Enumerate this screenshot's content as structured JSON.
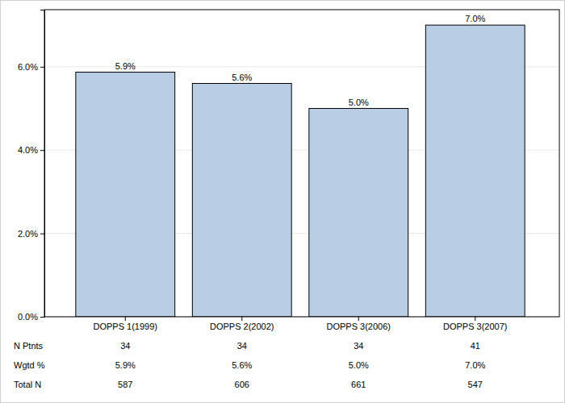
{
  "chart_data": {
    "type": "bar",
    "categories": [
      "DOPPS 1(1999)",
      "DOPPS 2(2002)",
      "DOPPS 3(2006)",
      "DOPPS 3(2007)"
    ],
    "values": [
      5.87,
      5.6,
      5.0,
      7.0
    ],
    "value_labels": [
      "5.9%",
      "5.6%",
      "5.0%",
      "7.0%"
    ],
    "color": "#b9cde5",
    "data_labels": true,
    "grid": true,
    "ylim": [
      0,
      7.37
    ],
    "yticks": [
      {
        "value": 0,
        "label": "0.0%"
      },
      {
        "value": 2,
        "label": "2.0%"
      },
      {
        "value": 4,
        "label": "4.0%"
      },
      {
        "value": 6,
        "label": "6.0%"
      }
    ]
  },
  "table": {
    "rows": [
      {
        "label": "N Ptnts",
        "values": [
          34,
          34,
          34,
          41
        ]
      },
      {
        "label": "Wgtd %",
        "values": [
          "5.9%",
          "5.6%",
          "5.0%",
          "7.0%"
        ]
      },
      {
        "label": "Total N",
        "values": [
          587,
          606,
          661,
          547
        ]
      }
    ]
  }
}
